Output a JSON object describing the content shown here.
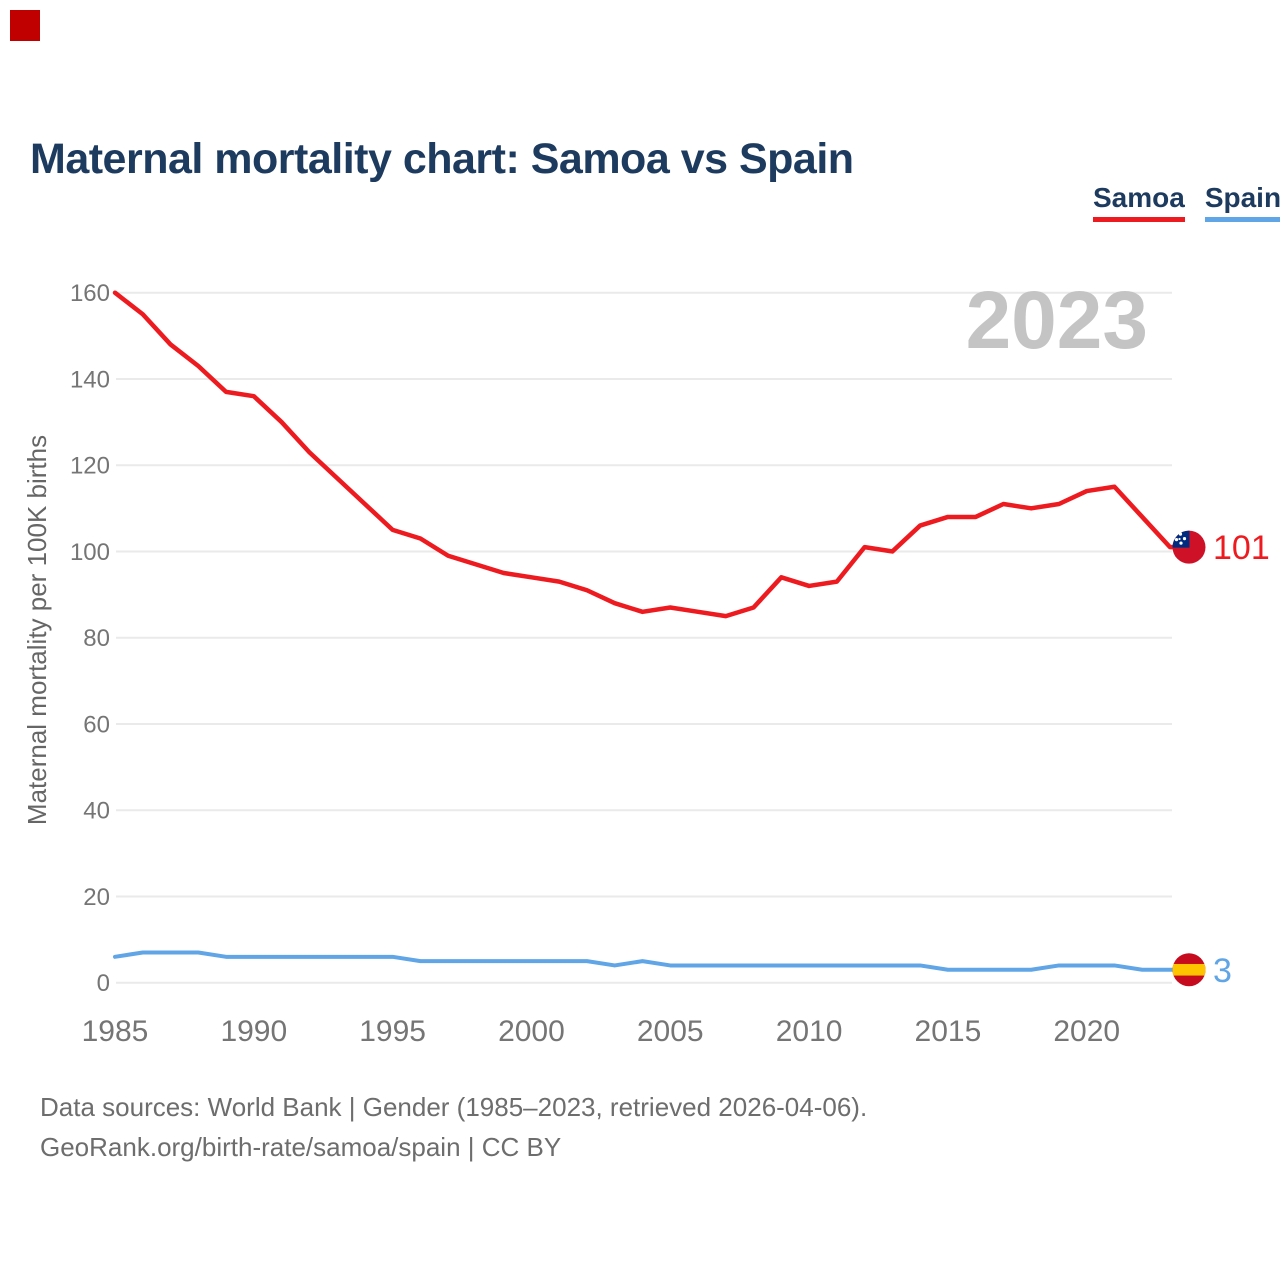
{
  "page": {
    "corner_marker_color": "#c00000",
    "background_color": "#ffffff",
    "title_color": "#1d3a5f",
    "grid_color": "#eaeaea",
    "tick_color": "#757575",
    "axis_title_color": "#666666",
    "watermark_color": "#c4c4c4",
    "footer_color": "#6d6d6d"
  },
  "title": "Maternal mortality chart: Samoa vs Spain",
  "legend": [
    {
      "label": "Samoa",
      "color": "#ed1b1f"
    },
    {
      "label": "Spain",
      "color": "#60a5e6"
    }
  ],
  "watermark": "2023",
  "footer": {
    "line1": "Data sources: World Bank | Gender (1985–2023, retrieved 2026-04-06).",
    "line2": "GeoRank.org/birth-rate/samoa/spain | CC BY"
  },
  "chart_data": {
    "type": "line",
    "title": "Maternal mortality chart: Samoa vs Spain",
    "xlabel": "",
    "ylabel": "Maternal mortality per 100K births",
    "ylim": [
      0,
      160
    ],
    "yticks": [
      0,
      20,
      40,
      60,
      80,
      100,
      120,
      140,
      160
    ],
    "xticks": [
      1985,
      1990,
      1995,
      2000,
      2005,
      2010,
      2015,
      2020
    ],
    "grid": true,
    "legend_position": "top-right",
    "x": [
      1985,
      1986,
      1987,
      1988,
      1989,
      1990,
      1991,
      1992,
      1993,
      1994,
      1995,
      1996,
      1997,
      1998,
      1999,
      2000,
      2001,
      2002,
      2003,
      2004,
      2005,
      2006,
      2007,
      2008,
      2009,
      2010,
      2011,
      2012,
      2013,
      2014,
      2015,
      2016,
      2017,
      2018,
      2019,
      2020,
      2021,
      2022,
      2023
    ],
    "series": [
      {
        "name": "Samoa",
        "color": "#ed1b1f",
        "flag_icon": "samoa-flag",
        "end_label": "101",
        "values": [
          160,
          155,
          148,
          143,
          137,
          136,
          130,
          123,
          117,
          111,
          105,
          103,
          99,
          97,
          95,
          94,
          93,
          91,
          88,
          86,
          87,
          86,
          85,
          87,
          94,
          92,
          93,
          101,
          100,
          106,
          108,
          108,
          111,
          110,
          111,
          114,
          115,
          108,
          101
        ]
      },
      {
        "name": "Spain",
        "color": "#60a5e6",
        "flag_icon": "spain-flag",
        "end_label": "3",
        "values": [
          6,
          7,
          7,
          7,
          6,
          6,
          6,
          6,
          6,
          6,
          6,
          5,
          5,
          5,
          5,
          5,
          5,
          5,
          4,
          5,
          4,
          4,
          4,
          4,
          4,
          4,
          4,
          4,
          4,
          4,
          3,
          3,
          3,
          3,
          4,
          4,
          4,
          3,
          3
        ]
      }
    ]
  }
}
